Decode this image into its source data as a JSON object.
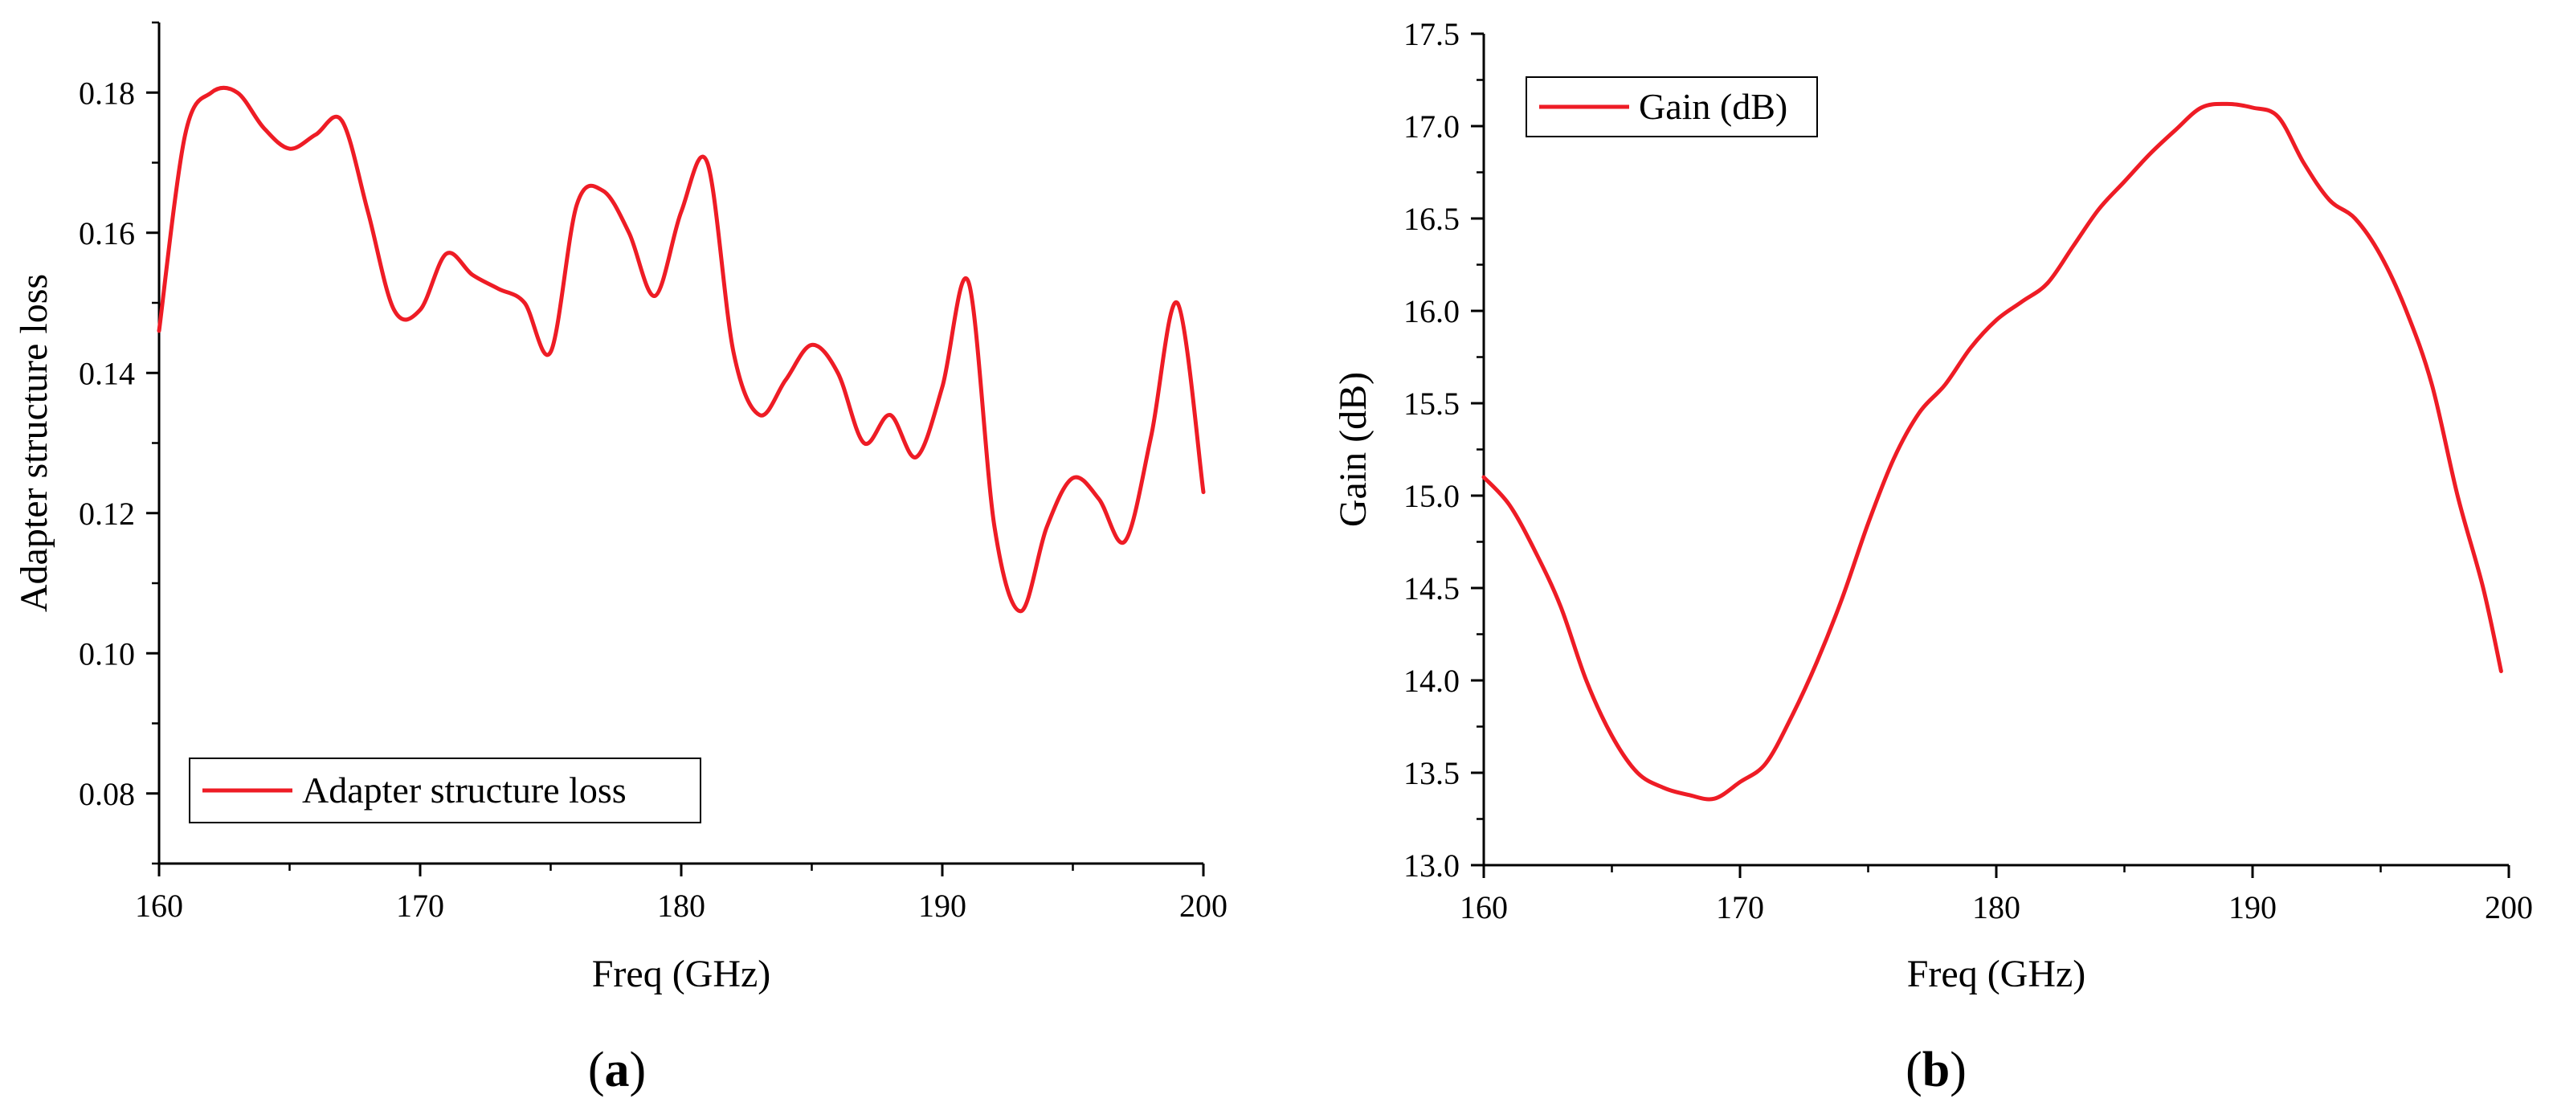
{
  "chart_data": [
    {
      "panel": "a",
      "type": "line",
      "title": "",
      "xlabel": "Freq (GHz)",
      "ylabel": "Adapter structure loss",
      "xlim": [
        160,
        200
      ],
      "ylim": [
        0.07,
        0.19
      ],
      "xticks": [
        160,
        170,
        180,
        190,
        200
      ],
      "yticks": [
        0.08,
        0.1,
        0.12,
        0.14,
        0.16,
        0.18
      ],
      "ytick_labels": [
        "0.08",
        "0.10",
        "0.12",
        "0.14",
        "0.16",
        "0.18"
      ],
      "grid": false,
      "legend": {
        "position": "bottom-left",
        "entries": [
          "Adapter structure loss"
        ]
      },
      "series": [
        {
          "name": "Adapter structure loss",
          "color": "#ee1c25",
          "x": [
            160,
            161,
            162,
            163,
            164,
            165,
            166,
            167,
            168,
            169,
            170,
            171,
            172,
            173,
            174,
            175,
            176,
            177,
            178,
            179,
            180,
            181,
            182,
            183,
            184,
            185,
            186,
            187,
            188,
            189,
            190,
            191,
            192,
            193,
            194,
            195,
            196,
            197,
            198,
            199,
            200
          ],
          "values": [
            0.146,
            0.174,
            0.18,
            0.18,
            0.175,
            0.172,
            0.174,
            0.176,
            0.163,
            0.149,
            0.149,
            0.157,
            0.154,
            0.152,
            0.15,
            0.143,
            0.164,
            0.166,
            0.16,
            0.151,
            0.163,
            0.17,
            0.143,
            0.134,
            0.139,
            0.144,
            0.14,
            0.13,
            0.134,
            0.128,
            0.138,
            0.153,
            0.118,
            0.106,
            0.118,
            0.125,
            0.122,
            0.116,
            0.131,
            0.15,
            0.123
          ]
        }
      ]
    },
    {
      "panel": "b",
      "type": "line",
      "title": "",
      "xlabel": "Freq (GHz)",
      "ylabel": "Gain (dB)",
      "xlim": [
        160,
        200
      ],
      "ylim": [
        13.0,
        17.5
      ],
      "xticks": [
        160,
        170,
        180,
        190,
        200
      ],
      "yticks": [
        13.0,
        13.5,
        14.0,
        14.5,
        15.0,
        15.5,
        16.0,
        16.5,
        17.0,
        17.5
      ],
      "ytick_labels": [
        "13.0",
        "13.5",
        "14.0",
        "14.5",
        "15.0",
        "15.5",
        "16.0",
        "16.5",
        "17.0",
        "17.5"
      ],
      "grid": false,
      "legend": {
        "position": "top-left",
        "entries": [
          "Gain (dB)"
        ]
      },
      "series": [
        {
          "name": "Gain (dB)",
          "color": "#ee1c25",
          "x": [
            160,
            161,
            162,
            163,
            164,
            165,
            166,
            167,
            168,
            169,
            170,
            171,
            172,
            173,
            174,
            175,
            176,
            177,
            178,
            179,
            180,
            181,
            182,
            183,
            184,
            185,
            186,
            187,
            188,
            189,
            190,
            191,
            192,
            193,
            194,
            195,
            196,
            197,
            198,
            199,
            199.7
          ],
          "values": [
            15.1,
            14.95,
            14.7,
            14.4,
            14.0,
            13.7,
            13.5,
            13.42,
            13.38,
            13.36,
            13.45,
            13.55,
            13.8,
            14.1,
            14.45,
            14.85,
            15.2,
            15.45,
            15.6,
            15.8,
            15.95,
            16.05,
            16.15,
            16.35,
            16.55,
            16.7,
            16.85,
            16.98,
            17.1,
            17.12,
            17.1,
            17.05,
            16.8,
            16.6,
            16.5,
            16.3,
            16.0,
            15.6,
            15.0,
            14.5,
            14.05
          ]
        }
      ]
    }
  ],
  "panel_labels": [
    "a",
    "b"
  ]
}
